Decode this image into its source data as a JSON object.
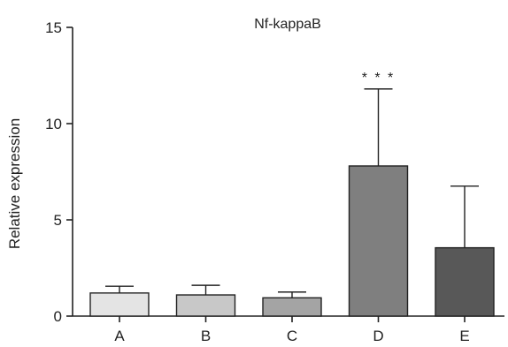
{
  "chart_data": {
    "type": "bar",
    "title": "Nf-kappaB",
    "xlabel": "",
    "ylabel": "Relative expression",
    "ylim": [
      0,
      15
    ],
    "yticks": [
      "0",
      "5",
      "10",
      "15"
    ],
    "categories": [
      "A",
      "B",
      "C",
      "D",
      "E"
    ],
    "values": [
      1.2,
      1.1,
      0.95,
      7.8,
      3.55
    ],
    "error_upper": [
      0.35,
      0.5,
      0.3,
      4.0,
      3.2
    ],
    "annotations": [
      {
        "category": "D",
        "text": "* * *"
      }
    ],
    "bar_colors": [
      "#e4e4e4",
      "#c8c8c8",
      "#a4a4a4",
      "#7f7f7f",
      "#585858"
    ],
    "grid": false,
    "legend": "none"
  }
}
